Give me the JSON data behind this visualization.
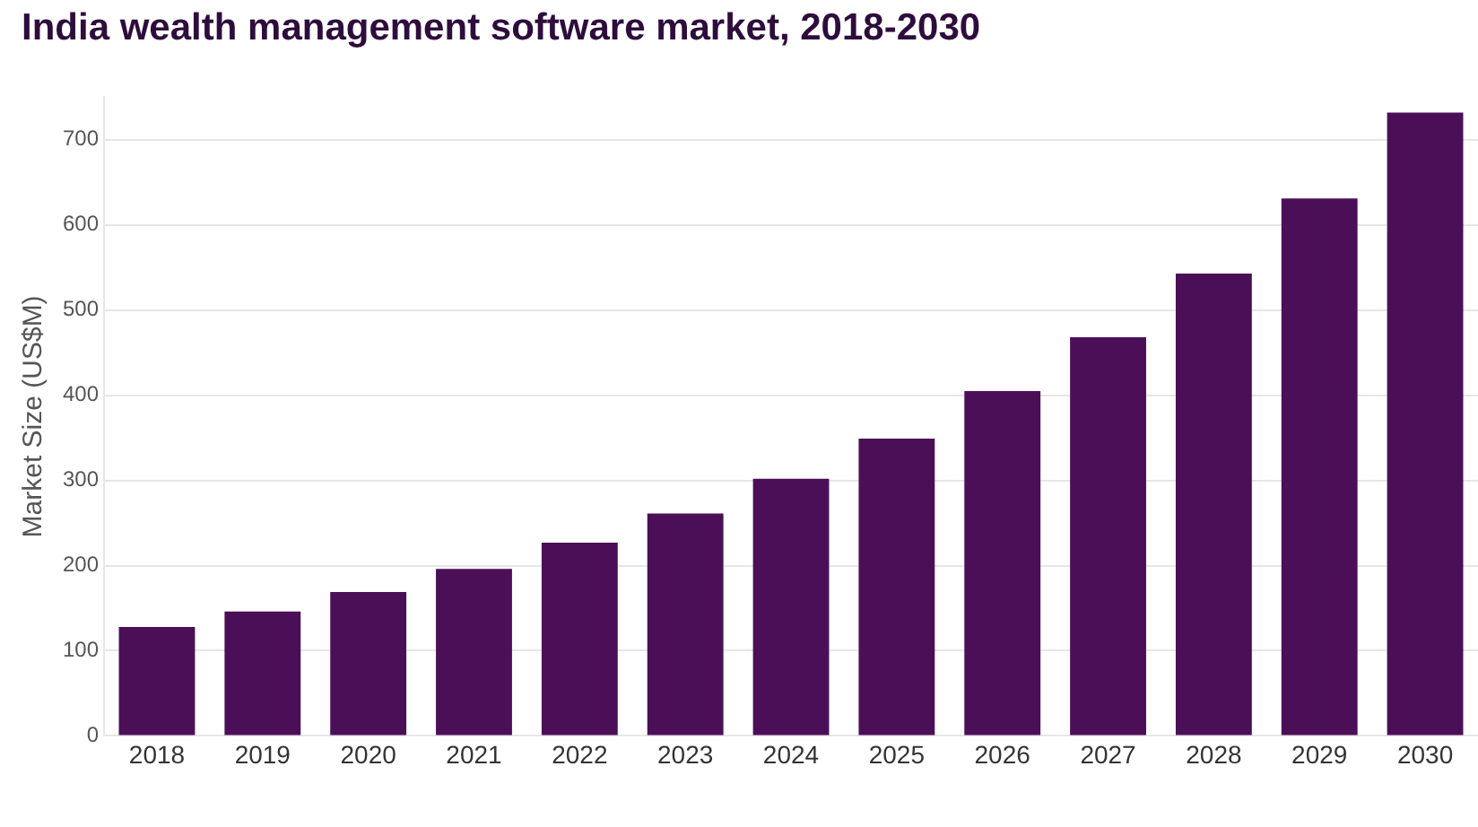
{
  "chart_data": {
    "type": "bar",
    "title": "India wealth management software market, 2018-2030",
    "ylabel": "Market Size (US$M)",
    "categories": [
      "2018",
      "2019",
      "2020",
      "2021",
      "2022",
      "2023",
      "2024",
      "2025",
      "2026",
      "2027",
      "2028",
      "2029",
      "2030"
    ],
    "values": [
      128,
      146,
      169,
      196,
      227,
      261,
      302,
      349,
      405,
      468,
      543,
      631,
      732
    ],
    "color": "#4b0f57",
    "ylim": [
      0,
      750
    ],
    "yticks": [
      0,
      100,
      200,
      300,
      400,
      500,
      600,
      700
    ],
    "grid": "y",
    "legend": false
  }
}
